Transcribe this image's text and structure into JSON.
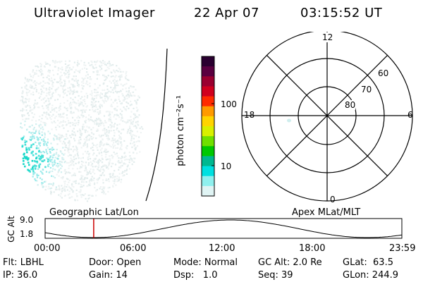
{
  "header": {
    "instrument": "Ultraviolet Imager",
    "date": "22 Apr 07",
    "time": "03:15:52 UT"
  },
  "colorbar": {
    "ticks": [
      "100",
      "10"
    ],
    "unit": "photon cm⁻²s⁻¹",
    "colors": [
      "#2a0030",
      "#5a0040",
      "#9a0030",
      "#d0001e",
      "#ff2a00",
      "#ff9a00",
      "#ffd400",
      "#d8f000",
      "#70e000",
      "#00c800",
      "#00b890",
      "#00e0e0",
      "#8ff0ee",
      "#e0f4f4"
    ]
  },
  "polar": {
    "mlt_labels": {
      "top": "12",
      "bottom": "0",
      "left": "18",
      "right": "6"
    },
    "lat_labels": [
      "60",
      "70",
      "80"
    ]
  },
  "timeline": {
    "left_title": "Geographic Lat/Lon",
    "right_title": "Apex MLat/MLT",
    "ylabel": "GC Alt",
    "y_ticks": [
      "9.0",
      "1.8"
    ],
    "x_ticks": [
      "00:00",
      "06:00",
      "12:00",
      "18:00",
      "23:59"
    ],
    "marker_time_hours": 3.264,
    "marker_color": "#cc0000"
  },
  "info": {
    "col1": [
      "Flt: LBHL",
      "IP: 36.0"
    ],
    "col2": [
      "Door: Open",
      "Gain: 14"
    ],
    "col3": [
      "Mode: Normal",
      "Dsp:   1.0"
    ],
    "col4": [
      "GC Alt: 2.0 Re",
      "Seq: 39"
    ],
    "col5": [
      "GLat:  63.5",
      "GLon: 244.9"
    ]
  }
}
